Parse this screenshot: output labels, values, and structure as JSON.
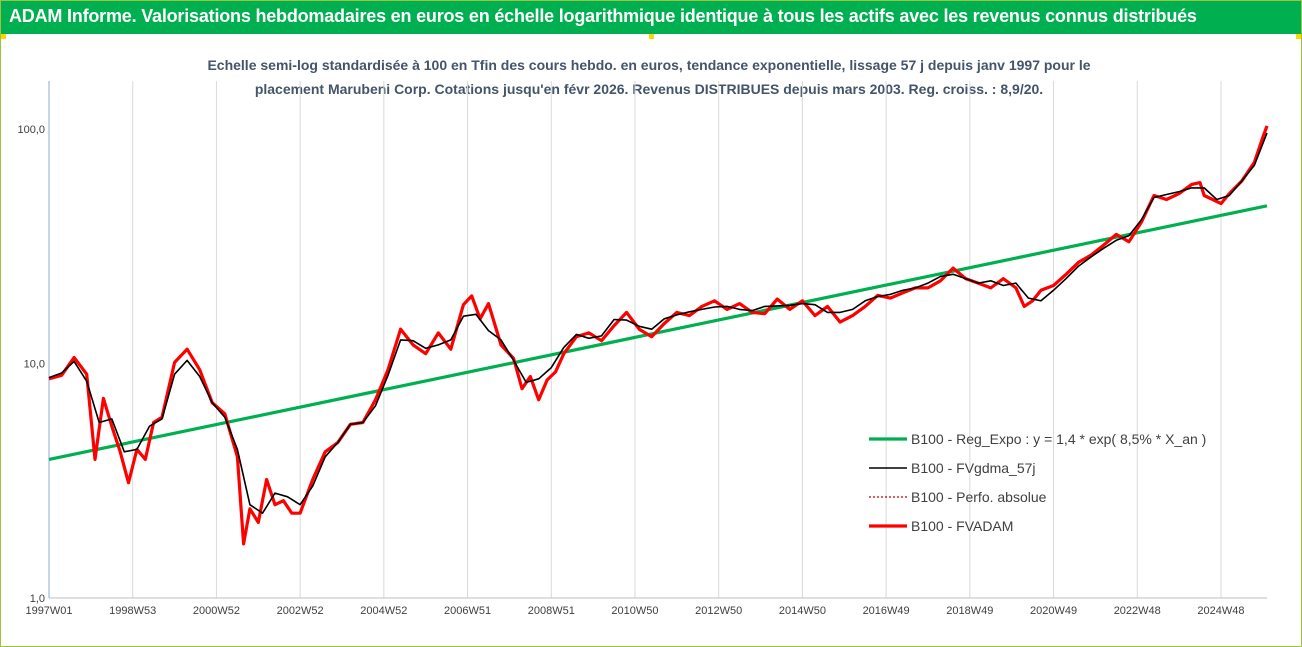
{
  "header": {
    "title": "ADAM Informe. Valorisations hebdomadaires en euros en échelle logarithmique identique à tous les actifs avec les revenus connus distribués"
  },
  "chart_data": {
    "type": "line",
    "title": "Echelle semi-log standardisée à 100 en Tfin des cours hebdo. en euros, tendance exponentielle, lissage 57 j depuis janv 1997 pour le",
    "subtitle": "placement Marubeni Corp. Cotations jusqu'en févr 2026. Revenus DISTRIBUES depuis mars 2003. Reg. croiss. : 8,9/20.",
    "y_scale": "log",
    "ylim": [
      1,
      160
    ],
    "y_ticks": [
      {
        "value": 1,
        "label": "1,0"
      },
      {
        "value": 10,
        "label": "10,0"
      },
      {
        "value": 100,
        "label": "100,0"
      }
    ],
    "xlim": [
      1997.0,
      2026.1
    ],
    "x_ticks": [
      {
        "value": 1997.0,
        "label": "1997W01"
      },
      {
        "value": 1999.0,
        "label": "1998W53"
      },
      {
        "value": 2001.0,
        "label": "2000W52"
      },
      {
        "value": 2003.0,
        "label": "2002W52"
      },
      {
        "value": 2005.0,
        "label": "2004W52"
      },
      {
        "value": 2007.0,
        "label": "2006W51"
      },
      {
        "value": 2009.0,
        "label": "2008W51"
      },
      {
        "value": 2011.0,
        "label": "2010W50"
      },
      {
        "value": 2013.0,
        "label": "2012W50"
      },
      {
        "value": 2015.0,
        "label": "2014W50"
      },
      {
        "value": 2017.0,
        "label": "2016W49"
      },
      {
        "value": 2019.0,
        "label": "2018W49"
      },
      {
        "value": 2021.0,
        "label": "2020W49"
      },
      {
        "value": 2023.0,
        "label": "2022W48"
      },
      {
        "value": 2025.0,
        "label": "2024W48"
      }
    ],
    "grid": {
      "vertical": true,
      "horizontal": false
    },
    "legend_position": "bottom-right",
    "series": [
      {
        "name": "B100 - Reg_Expo : y = 1,4 * exp( 8,5% *  X_an )",
        "color": "#00b050",
        "style": "solid-thick",
        "x": [
          1997.0,
          2026.1
        ],
        "y": [
          3.9,
          47.0
        ]
      },
      {
        "name": "B100 - FVgdma_57j",
        "color": "#000000",
        "style": "solid",
        "x": [
          1997.0,
          1997.3,
          1997.6,
          1997.9,
          1998.2,
          1998.5,
          1998.8,
          1999.1,
          1999.4,
          1999.7,
          2000.0,
          2000.3,
          2000.6,
          2000.9,
          2001.2,
          2001.5,
          2001.8,
          2002.1,
          2002.4,
          2002.7,
          2003.0,
          2003.3,
          2003.6,
          2003.9,
          2004.2,
          2004.5,
          2004.8,
          2005.1,
          2005.4,
          2005.7,
          2006.0,
          2006.3,
          2006.6,
          2006.9,
          2007.2,
          2007.5,
          2007.8,
          2008.1,
          2008.4,
          2008.7,
          2009.0,
          2009.3,
          2009.6,
          2009.9,
          2010.2,
          2010.5,
          2010.8,
          2011.1,
          2011.4,
          2011.7,
          2012.0,
          2012.3,
          2012.6,
          2012.9,
          2013.2,
          2013.5,
          2013.8,
          2014.1,
          2014.4,
          2014.7,
          2015.0,
          2015.3,
          2015.6,
          2015.9,
          2016.2,
          2016.5,
          2016.8,
          2017.1,
          2017.4,
          2017.7,
          2018.0,
          2018.3,
          2018.6,
          2018.9,
          2019.2,
          2019.5,
          2019.8,
          2020.1,
          2020.4,
          2020.7,
          2021.0,
          2021.3,
          2021.6,
          2021.9,
          2022.2,
          2022.5,
          2022.8,
          2023.1,
          2023.4,
          2023.7,
          2024.0,
          2024.3,
          2024.6,
          2024.9,
          2025.2,
          2025.5,
          2025.8,
          2026.1
        ],
        "y": [
          8.7,
          9.1,
          10.2,
          8.4,
          5.6,
          5.8,
          4.2,
          4.3,
          5.4,
          5.8,
          9.0,
          10.3,
          8.8,
          6.8,
          5.9,
          4.3,
          2.5,
          2.3,
          2.8,
          2.7,
          2.5,
          3.0,
          4.0,
          4.6,
          5.5,
          5.6,
          6.6,
          8.9,
          12.6,
          12.5,
          11.6,
          12.0,
          12.6,
          15.9,
          16.2,
          13.8,
          12.6,
          10.3,
          8.3,
          8.6,
          9.6,
          11.7,
          13.3,
          12.8,
          13.1,
          15.4,
          15.3,
          14.4,
          14.0,
          15.5,
          16.1,
          16.6,
          17.0,
          17.4,
          17.5,
          17.0,
          16.8,
          17.5,
          17.6,
          17.7,
          18.0,
          17.8,
          16.5,
          16.5,
          17.0,
          18.5,
          19.3,
          19.7,
          20.5,
          21.0,
          22.0,
          23.5,
          24.0,
          23.0,
          22.0,
          22.5,
          21.5,
          22.0,
          19.0,
          18.5,
          20.5,
          23.0,
          26.0,
          28.5,
          31.0,
          33.5,
          35.0,
          41.0,
          51.0,
          52.5,
          54.0,
          56.0,
          56.0,
          50.0,
          52.0,
          60.0,
          70.0,
          96.0
        ]
      },
      {
        "name": "B100 - Perfo. absolue",
        "color": "#c00000",
        "style": "dotted"
      },
      {
        "name": "B100 - FVADAM",
        "color": "#ff0000",
        "style": "solid-thick",
        "x": [
          1997.0,
          1997.3,
          1997.6,
          1997.9,
          1998.1,
          1998.3,
          1998.5,
          1998.7,
          1998.9,
          1999.1,
          1999.3,
          1999.5,
          1999.7,
          2000.0,
          2000.3,
          2000.6,
          2000.9,
          2001.2,
          2001.5,
          2001.65,
          2001.8,
          2002.0,
          2002.2,
          2002.4,
          2002.6,
          2002.8,
          2003.0,
          2003.3,
          2003.6,
          2003.9,
          2004.2,
          2004.5,
          2004.8,
          2005.1,
          2005.4,
          2005.7,
          2006.0,
          2006.3,
          2006.6,
          2006.9,
          2007.1,
          2007.3,
          2007.5,
          2007.8,
          2008.1,
          2008.3,
          2008.5,
          2008.7,
          2008.9,
          2009.1,
          2009.3,
          2009.6,
          2009.9,
          2010.2,
          2010.5,
          2010.8,
          2011.1,
          2011.4,
          2011.7,
          2012.0,
          2012.3,
          2012.6,
          2012.9,
          2013.2,
          2013.5,
          2013.8,
          2014.1,
          2014.4,
          2014.7,
          2015.0,
          2015.3,
          2015.6,
          2015.9,
          2016.2,
          2016.5,
          2016.8,
          2017.1,
          2017.4,
          2017.7,
          2018.0,
          2018.3,
          2018.6,
          2018.9,
          2019.2,
          2019.5,
          2019.8,
          2020.1,
          2020.3,
          2020.5,
          2020.7,
          2021.0,
          2021.3,
          2021.6,
          2021.9,
          2022.2,
          2022.5,
          2022.8,
          2023.1,
          2023.4,
          2023.7,
          2024.0,
          2024.3,
          2024.5,
          2024.6,
          2024.8,
          2025.0,
          2025.2,
          2025.5,
          2025.8,
          2026.0,
          2026.1
        ],
        "y": [
          8.6,
          8.9,
          10.6,
          9.0,
          3.9,
          7.1,
          5.4,
          4.2,
          3.1,
          4.3,
          3.9,
          5.6,
          5.9,
          10.1,
          11.5,
          9.4,
          6.8,
          6.1,
          4.0,
          1.7,
          2.4,
          2.1,
          3.2,
          2.5,
          2.6,
          2.3,
          2.3,
          3.2,
          4.2,
          4.6,
          5.5,
          5.6,
          7.0,
          9.4,
          14.0,
          12.0,
          11.0,
          13.5,
          11.5,
          17.8,
          19.4,
          15.5,
          18.0,
          12.0,
          10.5,
          7.8,
          8.8,
          7.0,
          8.5,
          9.2,
          11.0,
          13.0,
          13.5,
          12.5,
          14.5,
          16.5,
          14.0,
          13.0,
          14.8,
          16.5,
          16.0,
          17.5,
          18.5,
          17.0,
          18.0,
          16.5,
          16.3,
          18.8,
          17.0,
          18.5,
          16.0,
          17.5,
          15.0,
          16.0,
          17.5,
          19.5,
          19.0,
          20.0,
          21.0,
          21.0,
          22.5,
          25.5,
          23.0,
          22.0,
          21.0,
          23.0,
          21.0,
          17.5,
          18.5,
          20.5,
          21.5,
          24.0,
          27.0,
          29.0,
          32.0,
          35.5,
          33.0,
          40.0,
          52.0,
          50.0,
          53.0,
          58.0,
          59.0,
          52.0,
          50.0,
          48.0,
          53.0,
          60.0,
          72.0,
          92.0,
          103.0
        ]
      }
    ]
  }
}
